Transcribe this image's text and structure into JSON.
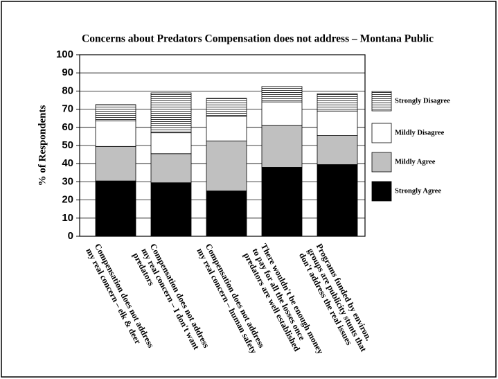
{
  "chart_data": {
    "type": "stacked_bar",
    "title": "Concerns about Predators Compensation does not address – Montana Public",
    "y_label": "% of Respondents",
    "categories": [
      "Compensation does not address\nmy real concern – elk & deer",
      "Compensation does not address\nmy real concern – I don't want\npredators",
      "Compensation does not address\nmy real concern – human safety",
      "There wouldn't be enough money\nto pay for all the losses once\npredators are well established",
      "Programs funded by environ.\ngroups are publicity stunts that\ndon't address the real issues"
    ],
    "series": [
      {
        "name": "Strongly Agree",
        "color": "#000000",
        "values": [
          30.5,
          29.5,
          25,
          38,
          39.5
        ]
      },
      {
        "name": "Mildly Agree",
        "color": "#c0c0c0",
        "values": [
          19,
          16,
          27.5,
          23,
          16
        ]
      },
      {
        "name": "Mildly Disagree",
        "color": "#ffffff",
        "values": [
          14,
          11.5,
          13.5,
          13,
          13.5
        ]
      },
      {
        "name": "Strongly Disagree",
        "color": "#ffffff",
        "hatch": "horizontal",
        "values": [
          9,
          22,
          10,
          8.5,
          9.5
        ]
      }
    ],
    "ylim": [
      0,
      100
    ],
    "yticks": [
      0,
      10,
      20,
      30,
      40,
      50,
      60,
      70,
      80,
      90,
      100
    ],
    "grid": true,
    "legend": "right"
  }
}
